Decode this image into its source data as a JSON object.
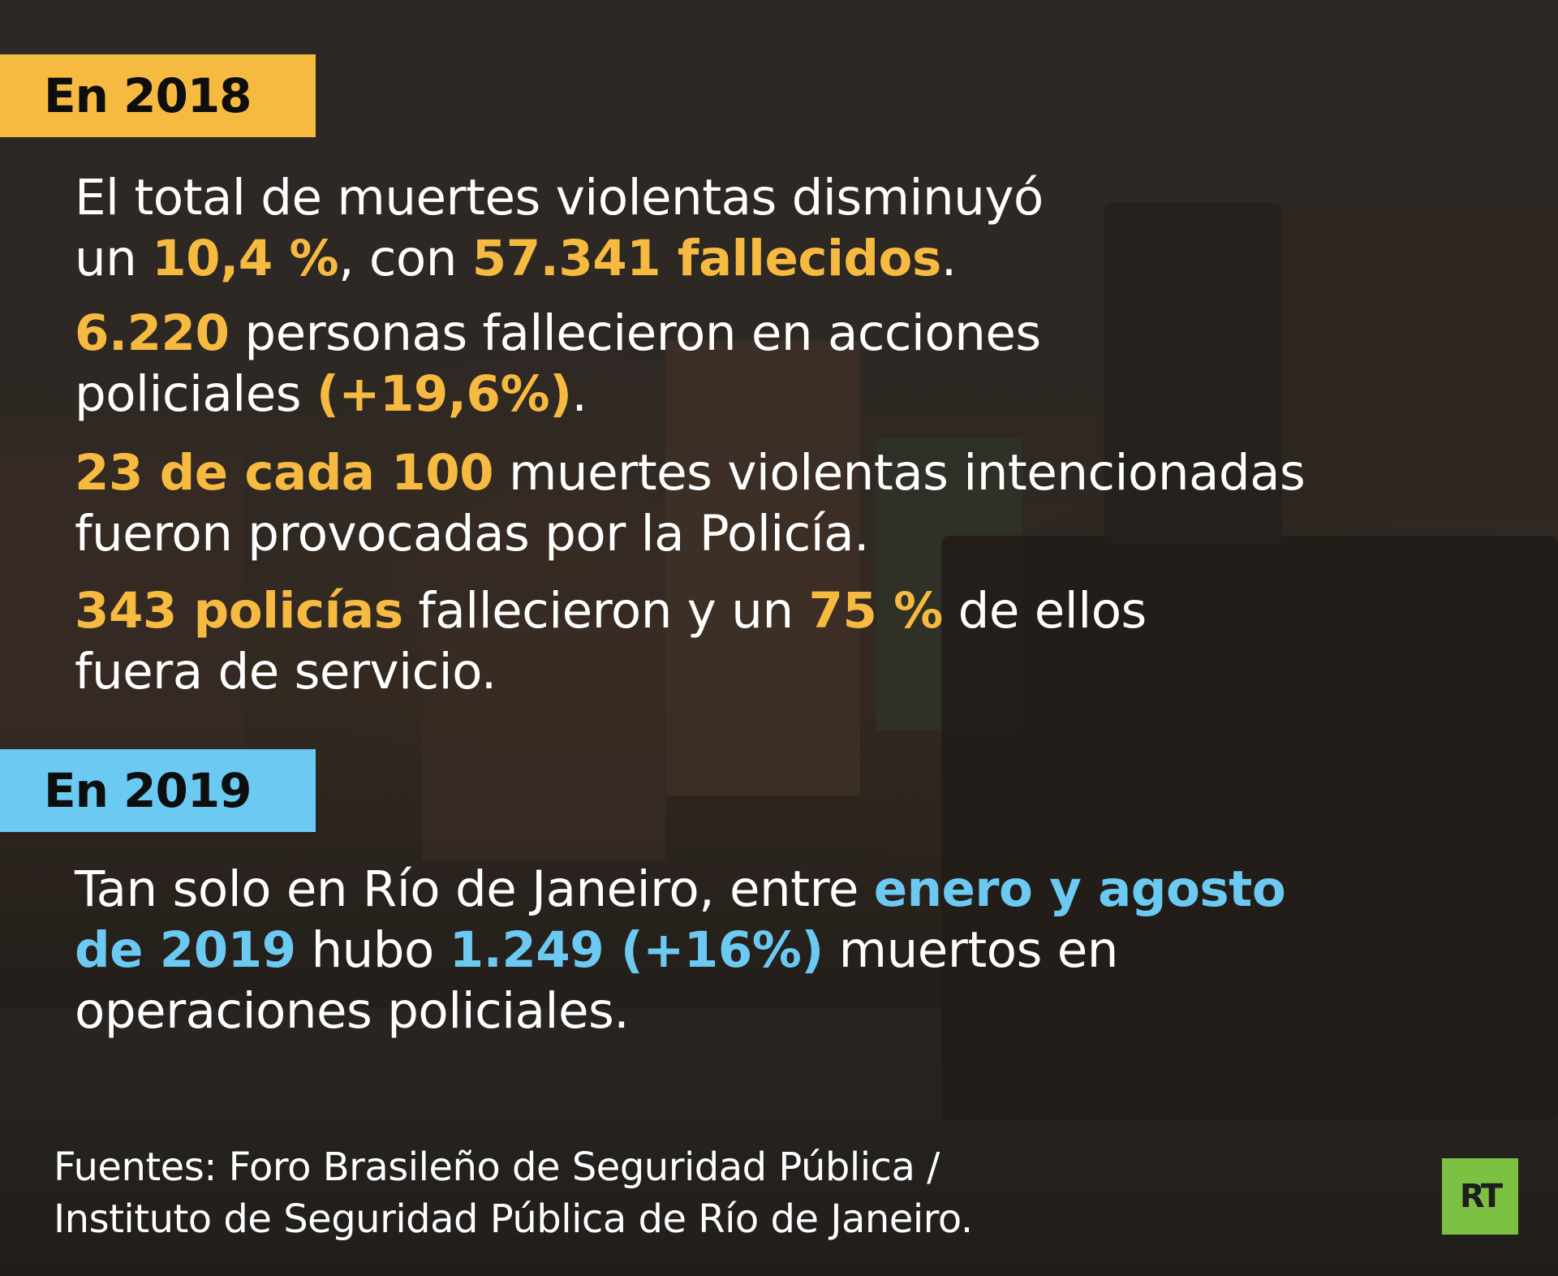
{
  "section_2018": {
    "tag": "En 2018",
    "p1": {
      "a": "El total de muertes violentas disminuyó",
      "b": "un ",
      "c": "10,4 %",
      "d": ", con ",
      "e": "57.341 fallecidos",
      "f": "."
    },
    "p2": {
      "a": "6.220",
      "b": " personas fallecieron en acciones",
      "c": "policiales ",
      "d": "(+19,6%)",
      "e": "."
    },
    "p3": {
      "a": "23 de cada 100",
      "b": " muertes violentas intencionadas",
      "c": "fueron provocadas por la Policía."
    },
    "p4": {
      "a": "343 policías",
      "b": " fallecieron y un ",
      "c": "75 %",
      "d": " de ellos",
      "e": "fuera de servicio."
    }
  },
  "section_2019": {
    "tag": "En 2019",
    "p1": {
      "a": "Tan solo en Río de Janeiro, entre ",
      "b": "enero y agosto",
      "c": "de 2019",
      "d": " hubo ",
      "e": "1.249 (+16%)",
      "f": " muertos en",
      "g": "operaciones policiales."
    }
  },
  "sources": {
    "line1": "Fuentes: Foro Brasileño de Seguridad Pública /",
    "line2": "Instituto de Seguridad Pública de Río de Janeiro."
  },
  "logo": {
    "text": "RT",
    "color": "#7dc142"
  },
  "colors": {
    "yellow": "#f7ba41",
    "blue": "#6ccaf2"
  }
}
